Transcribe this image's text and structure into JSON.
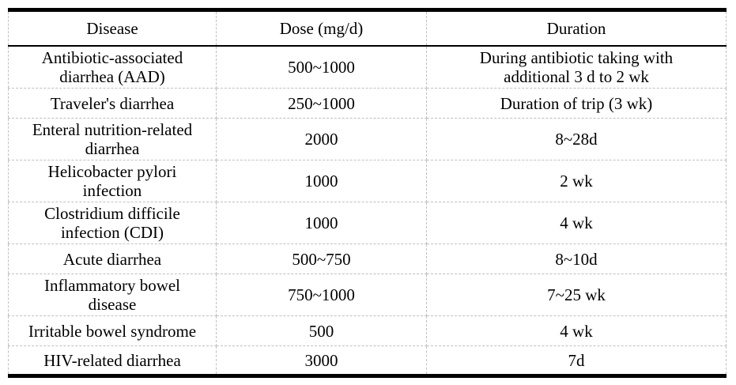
{
  "table": {
    "columns": [
      "Disease",
      "Dose (mg/d)",
      "Duration"
    ],
    "rows": [
      {
        "disease": "Antibiotic-associated\ndiarrhea (AAD)",
        "dose": "500~1000",
        "duration": "During antibiotic taking with\nadditional 3 d to 2 wk"
      },
      {
        "disease": "Traveler's diarrhea",
        "dose": "250~1000",
        "duration": "Duration of trip (3 wk)"
      },
      {
        "disease": "Enteral nutrition-related\ndiarrhea",
        "dose": "2000",
        "duration": "8~28d"
      },
      {
        "disease": "Helicobacter pylori\ninfection",
        "dose": "1000",
        "duration": "2 wk"
      },
      {
        "disease": "Clostridium difficile\ninfection (CDI)",
        "dose": "1000",
        "duration": "4 wk"
      },
      {
        "disease": "Acute diarrhea",
        "dose": "500~750",
        "duration": "8~10d"
      },
      {
        "disease": "Inflammatory bowel\ndisease",
        "dose": "750~1000",
        "duration": "7~25 wk"
      },
      {
        "disease": "Irritable bowel syndrome",
        "dose": "500",
        "duration": "4 wk"
      },
      {
        "disease": "HIV-related diarrhea",
        "dose": "3000",
        "duration": "7d"
      }
    ]
  },
  "colors": {
    "text": "#000000",
    "heavy_border": "#000000",
    "dashed_border": "#c0c0c0",
    "background": "#ffffff"
  }
}
